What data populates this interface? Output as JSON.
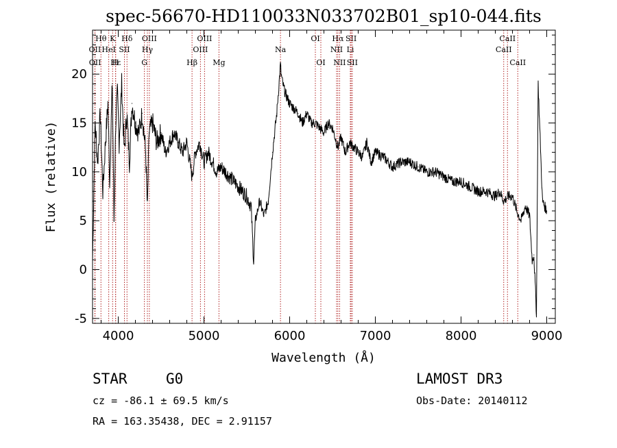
{
  "chart_data": {
    "type": "line",
    "title": "spec-56670-HD110033N033702B01_sp10-044.fits",
    "xlabel": "Wavelength (Å)",
    "ylabel": "Flux (relative)",
    "xlim": [
      3700,
      9100
    ],
    "ylim": [
      -5.5,
      24.5
    ],
    "xticks": [
      "4000",
      "5000",
      "6000",
      "7000",
      "8000",
      "9000"
    ],
    "yticks": [
      "-5",
      "0",
      "5",
      "10",
      "15",
      "20"
    ],
    "grid": false,
    "series": [
      {
        "x": [
          3700,
          3730,
          3760,
          3790,
          3820,
          3850,
          3880,
          3900,
          3930,
          3950,
          3970,
          3990,
          4010,
          4040,
          4070,
          4100,
          4130,
          4160,
          4200,
          4240,
          4280,
          4320,
          4340,
          4360,
          4400,
          4450,
          4500,
          4550,
          4600,
          4650,
          4700,
          4750,
          4800,
          4861,
          4900,
          4950,
          5000,
          5050,
          5100,
          5150,
          5200,
          5250,
          5300,
          5350,
          5400,
          5450,
          5500,
          5550,
          5580,
          5600,
          5650,
          5700,
          5750,
          5800,
          5850,
          5893,
          5900,
          5920,
          5950,
          6000,
          6050,
          6100,
          6150,
          6200,
          6250,
          6300,
          6350,
          6400,
          6450,
          6500,
          6563,
          6600,
          6650,
          6700,
          6750,
          6800,
          6850,
          6900,
          6950,
          7000,
          7100,
          7200,
          7300,
          7400,
          7500,
          7600,
          7700,
          7800,
          7900,
          8000,
          8100,
          8200,
          8300,
          8400,
          8450,
          8500,
          8550,
          8600,
          8650,
          8700,
          8750,
          8800,
          8830,
          8850,
          8880,
          8900,
          8950,
          9000
        ],
        "values": [
          1,
          15,
          11,
          16,
          8,
          13,
          17,
          9,
          19,
          5,
          15,
          18,
          13,
          19,
          12,
          16,
          11,
          17,
          15,
          14,
          16,
          12,
          6,
          14,
          15,
          13,
          14,
          12,
          13,
          14,
          13,
          12,
          13,
          9.5,
          12,
          13,
          11,
          12,
          11,
          10,
          10.5,
          10,
          9.5,
          9,
          8.5,
          8,
          7.5,
          6.5,
          0.8,
          5,
          7,
          5.5,
          7,
          12,
          16,
          21,
          20,
          19,
          18,
          17,
          16.5,
          16,
          15,
          16,
          15,
          15,
          14.5,
          14,
          15,
          14.5,
          12.5,
          13.5,
          12,
          13,
          12.5,
          12,
          11.5,
          13,
          11,
          12,
          11.5,
          10.5,
          11,
          11,
          10.5,
          10,
          10,
          9.5,
          9,
          9,
          8.5,
          8,
          8,
          7.5,
          8,
          7,
          7.5,
          7.5,
          6,
          5,
          6.5,
          5.5,
          1,
          1.5,
          -4.5,
          19,
          7,
          6
        ]
      }
    ],
    "spectral_lines": [
      {
        "label": "Hθ",
        "x": 3798,
        "row": 0
      },
      {
        "label": "K",
        "x": 3934,
        "row": 0
      },
      {
        "label": "Hδ",
        "x": 4102,
        "row": 0
      },
      {
        "label": "OIII",
        "x": 4363,
        "row": 0
      },
      {
        "label": "OIII",
        "x": 5007,
        "row": 0
      },
      {
        "label": "Na",
        "x": 5893,
        "row": 1
      },
      {
        "label": "OI",
        "x": 6300,
        "row": 0
      },
      {
        "label": "Hα",
        "x": 6563,
        "row": 0
      },
      {
        "label": "SII",
        "x": 6717,
        "row": 0
      },
      {
        "label": "CaII",
        "x": 8542,
        "row": 0
      },
      {
        "label": "OII",
        "x": 3727,
        "row": 1
      },
      {
        "label": "HeI",
        "x": 3889,
        "row": 1
      },
      {
        "label": "SII",
        "x": 4072,
        "row": 1
      },
      {
        "label": "Hγ",
        "x": 4340,
        "row": 1
      },
      {
        "label": "OIII",
        "x": 4959,
        "row": 1
      },
      {
        "label": "NII",
        "x": 6548,
        "row": 1
      },
      {
        "label": "Li",
        "x": 6708,
        "row": 1
      },
      {
        "label": "CaII",
        "x": 8498,
        "row": 1
      },
      {
        "label": "OII",
        "x": 3729,
        "row": 2
      },
      {
        "label": "Hε",
        "x": 3970,
        "row": 2
      },
      {
        "label": "H",
        "x": 3968,
        "row": 2
      },
      {
        "label": "G",
        "x": 4305,
        "row": 2
      },
      {
        "label": "Hβ",
        "x": 4861,
        "row": 2
      },
      {
        "label": "Mg",
        "x": 5175,
        "row": 2
      },
      {
        "label": "OI",
        "x": 6364,
        "row": 2
      },
      {
        "label": "NII",
        "x": 6583,
        "row": 2
      },
      {
        "label": "SII",
        "x": 6731,
        "row": 2
      },
      {
        "label": "CaII",
        "x": 8662,
        "row": 2
      }
    ]
  },
  "info": {
    "object_type": "STAR",
    "subclass": "G0",
    "survey": "LAMOST DR3",
    "redshift": "cz = -86.1 ± 69.5 km/s",
    "obs_date": "Obs-Date: 20140112",
    "coords": "RA = 163.35438, DEC =    2.91157"
  }
}
